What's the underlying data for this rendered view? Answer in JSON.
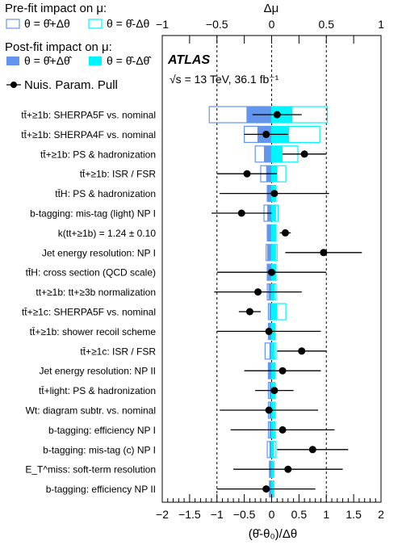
{
  "chart_data": {
    "type": "ranking",
    "legend": {
      "prefit_title": "Pre-fit impact on μ:",
      "prefit_up": "θ = θ̂+Δθ",
      "prefit_down": "θ = θ̂-Δθ",
      "postfit_title": "Post-fit impact on μ:",
      "postfit_up": "θ = θ̂+Δθ̂",
      "postfit_down": "θ = θ̂-Δθ̂",
      "pull": "Nuis. Param. Pull"
    },
    "experiment": "ATLAS",
    "energy_lumi": "√s = 13 TeV, 36.1 fb⁻¹",
    "xlabel_bottom": "(θ̂-θ₀)/Δθ",
    "xlabel_top": "Δμ",
    "bottom_range": [
      -2,
      2
    ],
    "top_range": [
      -1,
      1
    ],
    "bottom_ticks": [
      "−2",
      "−1.5",
      "−1",
      "−0.5",
      "0",
      "0.5",
      "1",
      "1.5",
      "2"
    ],
    "top_ticks": [
      "−1",
      "−0.5",
      "0",
      "0.5",
      "1"
    ],
    "colors": {
      "prefit_up": "#6495ed",
      "prefit_down": "#00f5ff",
      "postfit_up": "#6495ed",
      "postfit_down": "#00f5ff",
      "pull": "#000000",
      "guide": "#000000"
    },
    "parameters": [
      {
        "label": "tt̄+≥1b: SHERPA5F vs. nominal",
        "pull": 0.1,
        "pull_err": 0.45,
        "pre_up": -0.57,
        "pre_down": 0.51,
        "post_up": -0.23,
        "post_down": 0.19
      },
      {
        "label": "tt̄+≥1b: SHERPA4F vs. nominal",
        "pull": -0.1,
        "pull_err": 0.4,
        "pre_up": -0.25,
        "pre_down": 0.44,
        "post_up": -0.13,
        "post_down": 0.16
      },
      {
        "label": "tt̄+≥1b: PS & hadronization",
        "pull": 0.6,
        "pull_err": 0.4,
        "pre_up": -0.15,
        "pre_down": 0.24,
        "post_up": -0.07,
        "post_down": 0.1
      },
      {
        "label": "tt̄+≥1b: ISR / FSR",
        "pull": -0.45,
        "pull_err": 0.55,
        "pre_up": -0.1,
        "pre_down": 0.13,
        "post_up": -0.05,
        "post_down": 0.05
      },
      {
        "label": "tt̄H: PS & hadronization",
        "pull": 0.05,
        "pull_err": 1.0,
        "pre_up": -0.04,
        "pre_down": 0.04,
        "post_up": -0.04,
        "post_down": 0.04
      },
      {
        "label": "b-tagging: mis-tag (light) NP I",
        "pull": -0.55,
        "pull_err": 0.55,
        "pre_up": -0.07,
        "pre_down": 0.06,
        "post_up": -0.04,
        "post_down": 0.04
      },
      {
        "label": "k(tt+≥1b) = 1.24 ± 0.10",
        "pull": 0.25,
        "pull_err": 0.1,
        "pre_up": -0.04,
        "pre_down": 0.04,
        "post_up": -0.04,
        "post_down": 0.04
      },
      {
        "label": "Jet energy resolution: NP I",
        "pull": 0.95,
        "pull_err": 0.7,
        "pre_up": -0.05,
        "pre_down": 0.05,
        "post_up": -0.04,
        "post_down": 0.04
      },
      {
        "label": "tt̄H: cross section (QCD scale)",
        "pull": 0.0,
        "pull_err": 1.0,
        "pre_up": -0.04,
        "pre_down": 0.04,
        "post_up": -0.04,
        "post_down": 0.04
      },
      {
        "label": "tt+≥1b: tt+≥3b normalization",
        "pull": -0.25,
        "pull_err": 0.8,
        "pre_up": -0.04,
        "pre_down": 0.04,
        "post_up": -0.03,
        "post_down": 0.03
      },
      {
        "label": "tt̄+≥1c: SHERPA5F vs. nominal",
        "pull": -0.4,
        "pull_err": 0.2,
        "pre_up": -0.03,
        "pre_down": 0.13,
        "post_up": -0.02,
        "post_down": 0.05
      },
      {
        "label": "tt̄+≥1b: shower recoil scheme",
        "pull": -0.05,
        "pull_err": 0.95,
        "pre_up": -0.03,
        "pre_down": 0.03,
        "post_up": -0.03,
        "post_down": 0.03
      },
      {
        "label": "tt̄+≥1c: ISR / FSR",
        "pull": 0.55,
        "pull_err": 0.45,
        "pre_up": -0.06,
        "pre_down": 0.04,
        "post_up": -0.02,
        "post_down": 0.03
      },
      {
        "label": "Jet energy resolution: NP II",
        "pull": 0.2,
        "pull_err": 0.7,
        "pre_up": -0.03,
        "pre_down": 0.03,
        "post_up": -0.03,
        "post_down": 0.03
      },
      {
        "label": "tt̄+light: PS & hadronization",
        "pull": 0.05,
        "pull_err": 0.35,
        "pre_up": -0.03,
        "pre_down": 0.03,
        "post_up": -0.02,
        "post_down": 0.02
      },
      {
        "label": "Wt: diagram subtr. vs. nominal",
        "pull": -0.05,
        "pull_err": 0.9,
        "pre_up": -0.03,
        "pre_down": 0.03,
        "post_up": -0.02,
        "post_down": 0.02
      },
      {
        "label": "b-tagging: efficiency NP I",
        "pull": 0.2,
        "pull_err": 0.95,
        "pre_up": -0.03,
        "pre_down": 0.03,
        "post_up": -0.02,
        "post_down": 0.02
      },
      {
        "label": "b-tagging: mis-tag (c) NP I",
        "pull": 0.75,
        "pull_err": 0.65,
        "pre_up": -0.04,
        "pre_down": 0.04,
        "post_up": -0.02,
        "post_down": 0.02
      },
      {
        "label": "E_T^miss: soft-term resolution",
        "pull": 0.3,
        "pull_err": 1.0,
        "pre_up": -0.02,
        "pre_down": 0.02,
        "post_up": -0.02,
        "post_down": 0.02
      },
      {
        "label": "b-tagging: efficiency NP II",
        "pull": -0.1,
        "pull_err": 0.9,
        "pre_up": -0.02,
        "pre_down": 0.02,
        "post_up": -0.02,
        "post_down": 0.02
      }
    ]
  }
}
